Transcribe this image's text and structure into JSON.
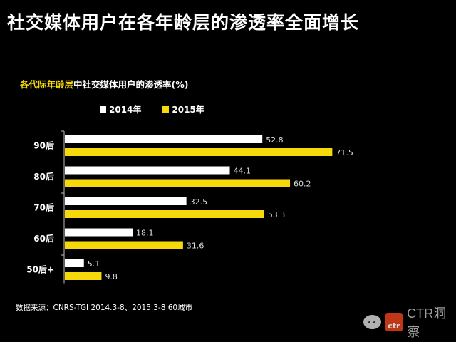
{
  "title": "社交媒体用户在各年龄层的渗透率全面增长",
  "subtitle_highlight": "各代际年龄层",
  "subtitle_rest": "中社交媒体用户的渗透率(%)",
  "source": "数据来源：CNRS-TGI 2014.3-8、2015.3-8 60城市",
  "watermark": {
    "logo": "ctr",
    "text": "CTR洞察"
  },
  "colors": {
    "series_2014": "#ffffff",
    "series_2015": "#f5d90a",
    "accent": "#f5d90a"
  },
  "chart_data": {
    "type": "bar",
    "orientation": "horizontal",
    "categories": [
      "90后",
      "80后",
      "70后",
      "60后",
      "50后+"
    ],
    "series": [
      {
        "name": "2014年",
        "values": [
          52.8,
          44.1,
          32.5,
          18.1,
          5.1
        ]
      },
      {
        "name": "2015年",
        "values": [
          71.5,
          60.2,
          53.3,
          31.6,
          9.8
        ]
      }
    ],
    "title": "",
    "xlabel": "",
    "ylabel": "",
    "xlim": [
      0,
      100
    ],
    "legend_position": "top",
    "grid": false
  }
}
